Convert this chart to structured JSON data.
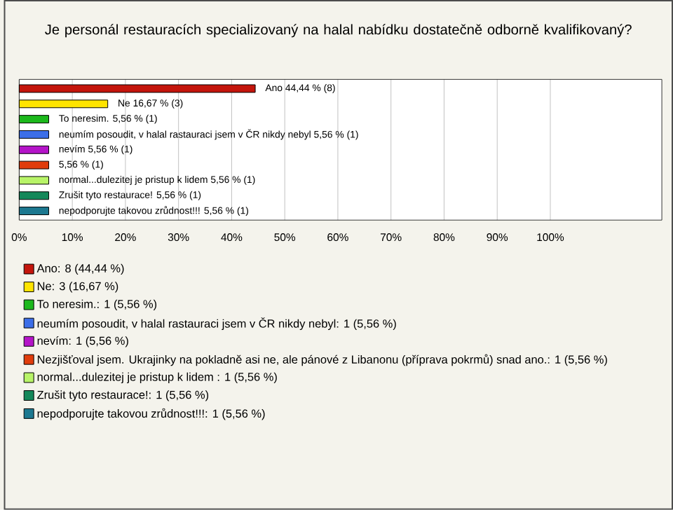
{
  "chart_data": {
    "type": "bar",
    "orientation": "horizontal",
    "title": "Je personál restauracích specializovaný na halal nabídku dostatečně odborně kvalifikovaný?",
    "categories": [
      "Ano 44,44 % (8)",
      "Ne 16,67 % (3)",
      "To neresim. 5,56 % (1)",
      "neumím posoudit, v halal rastauraci jsem v ČR nikdy nebyl 5,56 % (1)",
      "nevím 5,56 % (1)",
      "5,56 % (1)",
      "normal...dulezitej je pristup k lidem  5,56 % (1)",
      "Zrušit tyto restaurace! 5,56 % (1)",
      "nepodporujte takovou zrůdnost!!! 5,56 % (1)"
    ],
    "series": [
      {
        "name": "Ano: 8 (44,44 %)",
        "color": "#c4150c",
        "values": [
          44.44,
          null,
          null,
          null,
          null,
          null,
          null,
          null,
          null
        ]
      },
      {
        "name": "Ne: 3 (16,67 %)",
        "color": "#ffe400",
        "values": [
          null,
          16.67,
          null,
          null,
          null,
          null,
          null,
          null,
          null
        ]
      },
      {
        "name": "To neresim.: 1 (5,56 %)",
        "color": "#1cb81c",
        "values": [
          null,
          null,
          5.56,
          null,
          null,
          null,
          null,
          null,
          null
        ]
      },
      {
        "name": "neumím posoudit, v halal rastauraci jsem v ČR nikdy nebyl: 1 (5,56 %)",
        "color": "#3c6ee8",
        "values": [
          null,
          null,
          null,
          5.56,
          null,
          null,
          null,
          null,
          null
        ]
      },
      {
        "name": "nevím: 1 (5,56 %)",
        "color": "#b414c8",
        "values": [
          null,
          null,
          null,
          null,
          5.56,
          null,
          null,
          null,
          null
        ]
      },
      {
        "name": "Nezjišťoval jsem. Ukrajinky na pokladně asi ne, ale pánové z Libanonu (příprava pokrmů) snad ano.: 1 (5,56 %)",
        "color": "#e03c0c",
        "values": [
          null,
          null,
          null,
          null,
          null,
          5.56,
          null,
          null,
          null
        ]
      },
      {
        "name": "normal...dulezitej je pristup k lidem : 1 (5,56 %)",
        "color": "#b8f468",
        "values": [
          null,
          null,
          null,
          null,
          null,
          null,
          5.56,
          null,
          null
        ]
      },
      {
        "name": "Zrušit tyto restaurace!: 1 (5,56 %)",
        "color": "#14885a",
        "values": [
          null,
          null,
          null,
          null,
          null,
          null,
          null,
          5.56,
          null
        ]
      },
      {
        "name": "nepodporujte takovou zrůdnost!!!: 1 (5,56 %)",
        "color": "#1c7890",
        "values": [
          null,
          null,
          null,
          null,
          null,
          null,
          null,
          null,
          5.56
        ]
      }
    ],
    "xlim": [
      0,
      121
    ],
    "xticks": [
      {
        "value": 0,
        "label": "0%"
      },
      {
        "value": 10,
        "label": "10%"
      },
      {
        "value": 20,
        "label": "20%"
      },
      {
        "value": 30,
        "label": "30%"
      },
      {
        "value": 40,
        "label": "40%"
      },
      {
        "value": 50,
        "label": "50%"
      },
      {
        "value": 60,
        "label": "60%"
      },
      {
        "value": 70,
        "label": "70%"
      },
      {
        "value": 80,
        "label": "80%"
      },
      {
        "value": 90,
        "label": "90%"
      },
      {
        "value": 100,
        "label": "100%"
      }
    ],
    "grid": "x",
    "legend": "bottom"
  }
}
